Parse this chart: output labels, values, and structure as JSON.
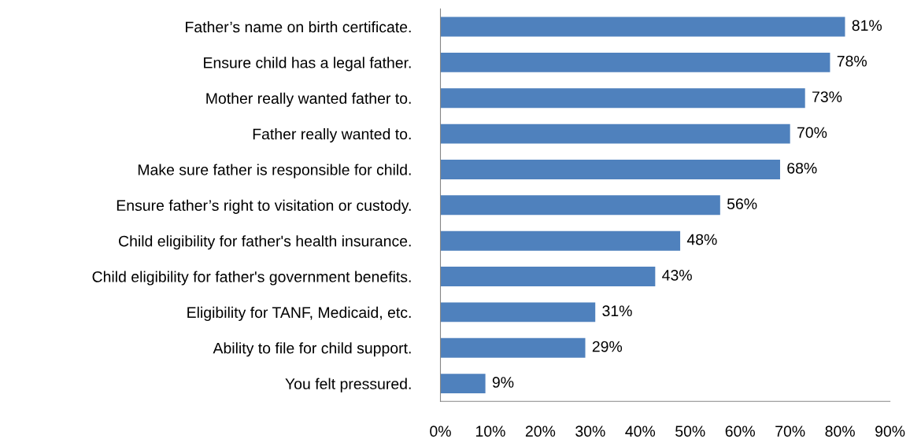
{
  "chart_data": {
    "type": "bar",
    "orientation": "horizontal",
    "categories": [
      "Father’s name on birth certificate.",
      "Ensure child has a legal father.",
      "Mother really wanted father to.",
      "Father really wanted to.",
      "Make sure father is responsible for child.",
      "Ensure father’s right to visitation or custody.",
      "Child eligibility for father's health insurance.",
      "Child eligibility for father's government benefits.",
      "Eligibility for TANF, Medicaid, etc.",
      "Ability to file for child support.",
      "You felt pressured."
    ],
    "values": [
      81,
      78,
      73,
      70,
      68,
      56,
      48,
      43,
      31,
      29,
      9
    ],
    "value_labels": [
      "81%",
      "78%",
      "73%",
      "70%",
      "68%",
      "56%",
      "48%",
      "43%",
      "31%",
      "29%",
      "9%"
    ],
    "color": "#4f81bd",
    "xlim": [
      0,
      90
    ],
    "xticks": [
      {
        "value": 0,
        "label": "0%"
      },
      {
        "value": 10,
        "label": "10%"
      },
      {
        "value": 20,
        "label": "20%"
      },
      {
        "value": 30,
        "label": "30%"
      },
      {
        "value": 40,
        "label": "40%"
      },
      {
        "value": 50,
        "label": "50%"
      },
      {
        "value": 60,
        "label": "60%"
      },
      {
        "value": 70,
        "label": "70%"
      },
      {
        "value": 80,
        "label": "80%"
      },
      {
        "value": 90,
        "label": "90%"
      }
    ],
    "grid": false,
    "legend": false
  }
}
